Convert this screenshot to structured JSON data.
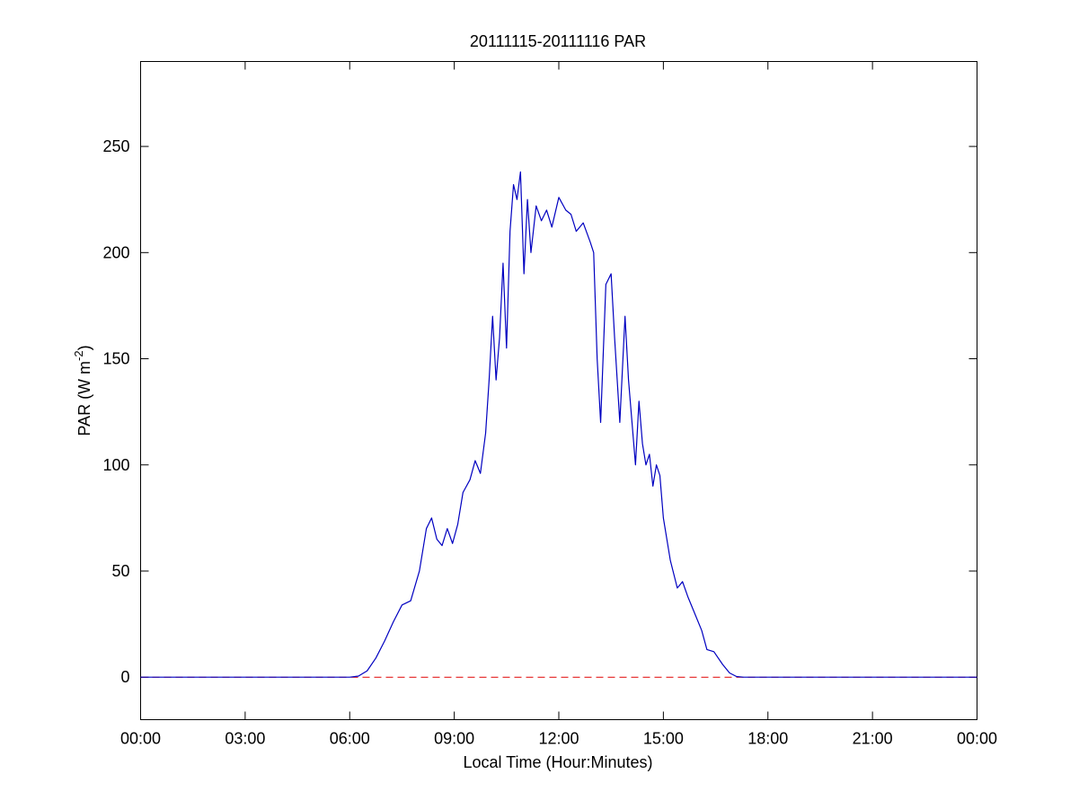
{
  "chart_data": {
    "type": "line",
    "title": "20111115-20111116 PAR",
    "x_label": "Local Time (Hour:Minutes)",
    "y_label": [
      "PAR (W m",
      "-2",
      ")"
    ],
    "x": [
      0,
      6.0,
      6.25,
      6.5,
      6.75,
      7.0,
      7.25,
      7.5,
      7.75,
      8.0,
      8.2,
      8.35,
      8.5,
      8.65,
      8.8,
      8.95,
      9.1,
      9.25,
      9.45,
      9.6,
      9.75,
      9.9,
      10.0,
      10.1,
      10.2,
      10.3,
      10.4,
      10.5,
      10.6,
      10.7,
      10.8,
      10.9,
      11.0,
      11.1,
      11.2,
      11.35,
      11.5,
      11.65,
      11.8,
      12.0,
      12.2,
      12.35,
      12.5,
      12.7,
      12.9,
      13.0,
      13.1,
      13.2,
      13.35,
      13.5,
      13.6,
      13.75,
      13.9,
      14.0,
      14.1,
      14.2,
      14.3,
      14.4,
      14.5,
      14.6,
      14.7,
      14.8,
      14.9,
      15.0,
      15.2,
      15.4,
      15.55,
      15.7,
      15.9,
      16.1,
      16.25,
      16.45,
      16.7,
      16.9,
      17.1,
      17.3,
      24
    ],
    "series": [
      {
        "name": "PAR",
        "color": "#0000c0",
        "values": [
          0,
          0,
          0.5,
          3,
          9,
          17,
          26,
          34,
          36,
          50,
          70,
          75,
          65,
          62,
          70,
          63,
          72,
          87,
          93,
          102,
          96,
          115,
          140,
          170,
          140,
          160,
          195,
          155,
          210,
          232,
          225,
          238,
          190,
          225,
          200,
          222,
          215,
          220,
          212,
          226,
          220,
          218,
          210,
          214,
          205,
          200,
          150,
          120,
          185,
          190,
          160,
          120,
          170,
          140,
          120,
          100,
          130,
          110,
          100,
          105,
          90,
          100,
          95,
          75,
          55,
          42,
          45,
          38,
          30,
          22,
          13,
          12,
          6,
          2,
          0.3,
          0,
          0
        ]
      }
    ],
    "hline": {
      "value": 0,
      "color": "#e00000",
      "style": "dashed"
    },
    "xlim": [
      0,
      24
    ],
    "xticks": [
      {
        "value": 0,
        "label": "00:00"
      },
      {
        "value": 3,
        "label": "03:00"
      },
      {
        "value": 6,
        "label": "06:00"
      },
      {
        "value": 9,
        "label": "09:00"
      },
      {
        "value": 12,
        "label": "12:00"
      },
      {
        "value": 15,
        "label": "15:00"
      },
      {
        "value": 18,
        "label": "18:00"
      },
      {
        "value": 21,
        "label": "21:00"
      },
      {
        "value": 24,
        "label": "00:00"
      }
    ],
    "ylim": [
      -20,
      290
    ],
    "yticks": [
      0,
      50,
      100,
      150,
      200,
      250
    ],
    "grid": false
  }
}
